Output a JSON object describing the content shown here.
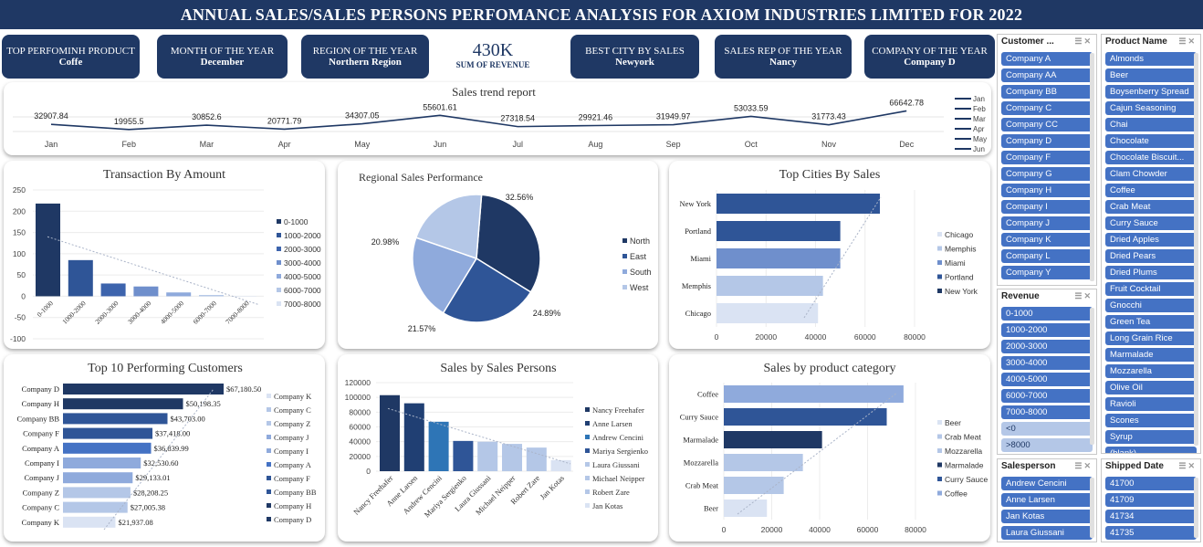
{
  "banner": {
    "title": "ANNUAL SALES/SALES PERSONS PERFOMANCE ANALYSIS FOR AXIOM INDUSTRIES LIMITED FOR 2022"
  },
  "kpis": {
    "top_product": {
      "label": "TOP PERFOMINH PRODUCT",
      "value": "Coffe"
    },
    "month": {
      "label": "MONTH OF THE YEAR",
      "value": "December"
    },
    "region": {
      "label": "REGION OF THE YEAR",
      "value": "Northern Region"
    },
    "revenue": {
      "value": "430K",
      "label": "SUM OF REVENUE"
    },
    "city": {
      "label": "BEST CITY BY SALES",
      "value": "Newyork"
    },
    "rep": {
      "label": "SALES REP OF THE YEAR",
      "value": "Nancy"
    },
    "company": {
      "label": "COMPANY OF THE YEAR",
      "value": "Company D"
    }
  },
  "slicers": {
    "customer": {
      "title": "Customer ...",
      "items": [
        "Company A",
        "Company AA",
        "Company BB",
        "Company C",
        "Company CC",
        "Company D",
        "Company F",
        "Company G",
        "Company H",
        "Company I",
        "Company J",
        "Company K",
        "Company L",
        "Company Y"
      ]
    },
    "product": {
      "title": "Product Name",
      "items": [
        "Almonds",
        "Beer",
        "Boysenberry Spread",
        "Cajun Seasoning",
        "Chai",
        "Chocolate",
        "Chocolate Biscuit...",
        "Clam Chowder",
        "Coffee",
        "Crab Meat",
        "Curry Sauce",
        "Dried Apples",
        "Dried Pears",
        "Dried Plums",
        "Fruit Cocktail",
        "Gnocchi",
        "Green Tea",
        "Long Grain Rice",
        "Marmalade",
        "Mozzarella",
        "Olive Oil",
        "Ravioli",
        "Scones",
        "Syrup",
        "(blank)"
      ]
    },
    "revenue": {
      "title": "Revenue",
      "items": [
        "0-1000",
        "1000-2000",
        "2000-3000",
        "3000-4000",
        "4000-5000",
        "6000-7000",
        "7000-8000"
      ],
      "dim_items": [
        "<0",
        ">8000"
      ]
    },
    "salesperson": {
      "title": "Salesperson",
      "items": [
        "Andrew Cencini",
        "Anne Larsen",
        "Jan Kotas",
        "Laura Giussani"
      ]
    },
    "shipped": {
      "title": "Shipped Date",
      "items": [
        "41700",
        "41709",
        "41734",
        "41735"
      ]
    }
  },
  "colors": {
    "navy": "#1f3864",
    "blue": "#2f5597",
    "mid": "#4472c4",
    "light": "#8faadc",
    "pale": "#b4c7e7",
    "palest": "#dae3f3"
  },
  "chart_data": [
    {
      "id": "trend",
      "type": "line",
      "title": "Sales trend report",
      "categories": [
        "Jan",
        "Feb",
        "Mar",
        "Apr",
        "May",
        "Jun",
        "Jul",
        "Aug",
        "Sep",
        "Oct",
        "Nov",
        "Dec"
      ],
      "values": [
        32907.84,
        19955.5,
        30852.6,
        20771.79,
        34307.05,
        55601.61,
        27318.54,
        29921.46,
        31949.97,
        53033.59,
        31773.43,
        66642.78
      ],
      "labels": [
        "32907.84",
        "19955.5",
        "30852.6",
        "20771.79",
        "34307.05",
        "55601.61",
        "27318.54",
        "29921.46",
        "31949.97",
        "53033.59",
        "31773.43",
        "66642.78"
      ],
      "legend": [
        "Jan",
        "Feb",
        "Mar",
        "Apr",
        "May",
        "Jun"
      ]
    },
    {
      "id": "txn",
      "type": "bar",
      "title": "Transaction By Amount",
      "categories": [
        "0-1000",
        "1000-2000",
        "2000-3000",
        "3000-4000",
        "4000-5000",
        "6000-7000",
        "7000-8000"
      ],
      "values": [
        218,
        85,
        30,
        23,
        9,
        3,
        1
      ],
      "ylim": [
        -100,
        250
      ],
      "yticks": [
        "250",
        "200",
        "150",
        "100",
        "50",
        "0",
        "-50",
        "-100"
      ],
      "legend": [
        "0-1000",
        "1000-2000",
        "2000-3000",
        "3000-4000",
        "4000-5000",
        "6000-7000",
        "7000-8000"
      ]
    },
    {
      "id": "region",
      "type": "pie",
      "title": "Regional Sales Performance",
      "categories": [
        "North",
        "East",
        "South",
        "West"
      ],
      "values": [
        32.56,
        24.89,
        21.57,
        20.98
      ],
      "labels": [
        "32.56%",
        "24.89%",
        "21.57%",
        "20.98%"
      ]
    },
    {
      "id": "cities",
      "type": "bar",
      "title": "Top Cities By Sales",
      "categories": [
        "New York",
        "Portland",
        "Miami",
        "Memphis",
        "Chicago"
      ],
      "values": [
        66000,
        50000,
        50000,
        43000,
        41000
      ],
      "xlim": [
        0,
        80000
      ],
      "xticks": [
        "0",
        "20000",
        "40000",
        "60000",
        "80000"
      ],
      "legend": [
        "Chicago",
        "Memphis",
        "Miami",
        "Portland",
        "New York"
      ]
    },
    {
      "id": "customers",
      "type": "bar",
      "title": "Top 10 Performing Customers",
      "categories": [
        "Company D",
        "Company H",
        "Company BB",
        "Company F",
        "Company A",
        "Company I",
        "Company J",
        "Company Z",
        "Company C",
        "Company K"
      ],
      "values": [
        67180.5,
        50198.35,
        43703.0,
        37418.0,
        36839.99,
        32530.6,
        29133.01,
        28208.25,
        27005.38,
        21937.08
      ],
      "labels": [
        "$67,180.50",
        "$50,198.35",
        "$43,703.00",
        "$37,418.00",
        "$36,839.99",
        "$32,530.60",
        "$29,133.01",
        "$28,208.25",
        "$27,005.38",
        "$21,937.08"
      ],
      "legend": [
        "Company K",
        "Company C",
        "Company Z",
        "Company J",
        "Company I",
        "Company A",
        "Company F",
        "Company BB",
        "Company H",
        "Company D"
      ]
    },
    {
      "id": "persons",
      "type": "bar",
      "title": "Sales by Sales Persons",
      "categories": [
        "Nancy Freehafer",
        "Anne Larsen",
        "Andrew Cencini",
        "Mariya Sergienko",
        "Laura Giussani",
        "Michael Neipper",
        "Robert Zare",
        "Jan Kotas"
      ],
      "values": [
        103000,
        92000,
        67000,
        41000,
        40000,
        37000,
        32000,
        15000
      ],
      "ylim": [
        0,
        120000
      ],
      "yticks": [
        "120000",
        "100000",
        "80000",
        "60000",
        "40000",
        "20000",
        "0"
      ],
      "legend": [
        "Nancy Freehafer",
        "Anne Larsen",
        "Andrew Cencini",
        "Mariya Sergienko",
        "Laura Giussani",
        "Michael Neipper",
        "Robert Zare",
        "Jan Kotas"
      ]
    },
    {
      "id": "products",
      "type": "bar",
      "title": "Sales by product category",
      "categories": [
        "Coffee",
        "Curry Sauce",
        "Marmalade",
        "Mozzarella",
        "Crab Meat",
        "Beer"
      ],
      "values": [
        75000,
        68000,
        41000,
        33000,
        25000,
        18000
      ],
      "xlim": [
        0,
        80000
      ],
      "xticks": [
        "0",
        "20000",
        "40000",
        "60000",
        "80000"
      ],
      "legend": [
        "Beer",
        "Crab Meat",
        "Mozzarella",
        "Marmalade",
        "Curry Sauce",
        "Coffee"
      ]
    }
  ]
}
